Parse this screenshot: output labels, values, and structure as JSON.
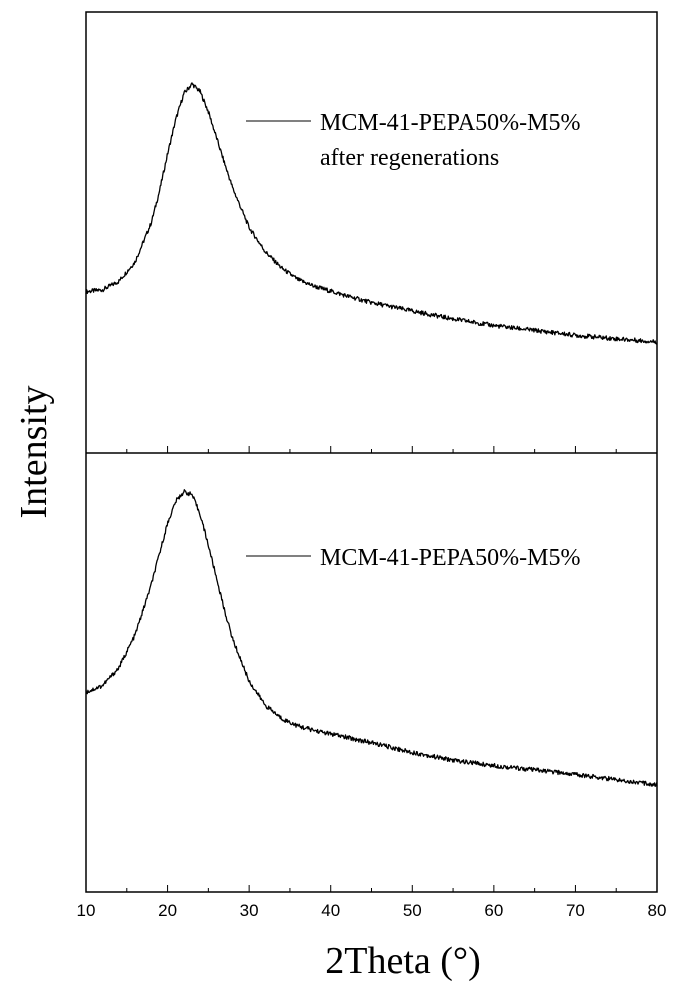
{
  "chart_data": [
    {
      "type": "line",
      "panel": "top",
      "xlabel": "2Theta (°)",
      "ylabel": "Intensity",
      "xlim": [
        10,
        80
      ],
      "ylim": [
        0,
        1
      ],
      "grid": false,
      "legend_placement": "top-right",
      "series": [
        {
          "name": "MCM-41-PEPA50%-M5%",
          "name_line2": "after regenerations",
          "x": [
            10,
            12,
            14,
            16,
            18,
            19,
            20,
            21,
            22,
            23,
            24,
            25,
            26,
            27,
            28,
            30,
            32,
            34,
            36,
            38,
            40,
            42,
            45,
            50,
            55,
            60,
            65,
            70,
            75,
            80
          ],
          "y": [
            0.366,
            0.37,
            0.389,
            0.433,
            0.522,
            0.593,
            0.678,
            0.756,
            0.815,
            0.837,
            0.819,
            0.774,
            0.715,
            0.656,
            0.6,
            0.511,
            0.456,
            0.419,
            0.393,
            0.378,
            0.367,
            0.356,
            0.341,
            0.322,
            0.304,
            0.289,
            0.278,
            0.267,
            0.259,
            0.252
          ]
        }
      ]
    },
    {
      "type": "line",
      "panel": "bottom",
      "xlabel": "2Theta (°)",
      "ylabel": "Intensity",
      "xlim": [
        10,
        80
      ],
      "ylim": [
        0,
        1
      ],
      "grid": false,
      "legend_placement": "top-right",
      "series": [
        {
          "name": "MCM-41-PEPA50%-M5%",
          "x": [
            10,
            12,
            14,
            16,
            18,
            19,
            20,
            21,
            22,
            23,
            24,
            25,
            26,
            27,
            28,
            30,
            32,
            34,
            36,
            38,
            40,
            42,
            45,
            50,
            55,
            60,
            65,
            70,
            75,
            80
          ],
          "y": [
            0.455,
            0.47,
            0.51,
            0.585,
            0.7,
            0.77,
            0.84,
            0.89,
            0.912,
            0.905,
            0.86,
            0.79,
            0.715,
            0.64,
            0.575,
            0.48,
            0.425,
            0.395,
            0.378,
            0.368,
            0.36,
            0.352,
            0.34,
            0.318,
            0.3,
            0.288,
            0.278,
            0.268,
            0.256,
            0.244
          ]
        }
      ]
    }
  ]
}
